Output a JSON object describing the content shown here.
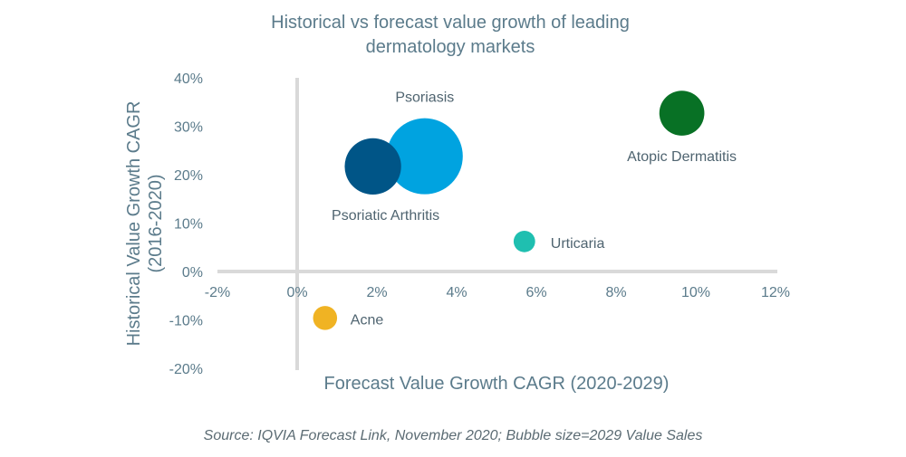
{
  "chart_data": {
    "type": "scatter",
    "subtype": "bubble",
    "title": [
      "Historical vs forecast value growth of leading",
      "dermatology markets"
    ],
    "xlabel": "Forecast Value Growth CAGR (2020-2029)",
    "ylabel": [
      "Historical Value Growth CAGR",
      "(2016-2020)"
    ],
    "xlim": [
      -2,
      12
    ],
    "ylim": [
      -20,
      40
    ],
    "xticks": [
      -2,
      0,
      2,
      4,
      6,
      8,
      10,
      12
    ],
    "yticks": [
      -20,
      -10,
      0,
      10,
      20,
      30,
      40
    ],
    "tick_suffix": "%",
    "grid": false,
    "source": "Source: IQVIA Forecast Link, November 2020; Bubble size=2029 Value Sales",
    "series": [
      {
        "name": "Psoriasis",
        "x": 3.2,
        "y": 23.8,
        "size": 1.0,
        "color": "#00a3e0"
      },
      {
        "name": "Psoriatic Arthritis",
        "x": 1.9,
        "y": 21.7,
        "size": 0.55,
        "color": "#005587"
      },
      {
        "name": "Atopic Dermatitis",
        "x": 9.65,
        "y": 32.7,
        "size": 0.35,
        "color": "#087125"
      },
      {
        "name": "Urticaria",
        "x": 5.7,
        "y": 6.2,
        "size": 0.08,
        "color": "#1fbfb0"
      },
      {
        "name": "Acne",
        "x": 0.7,
        "y": -9.6,
        "size": 0.1,
        "color": "#f0b323"
      }
    ]
  }
}
